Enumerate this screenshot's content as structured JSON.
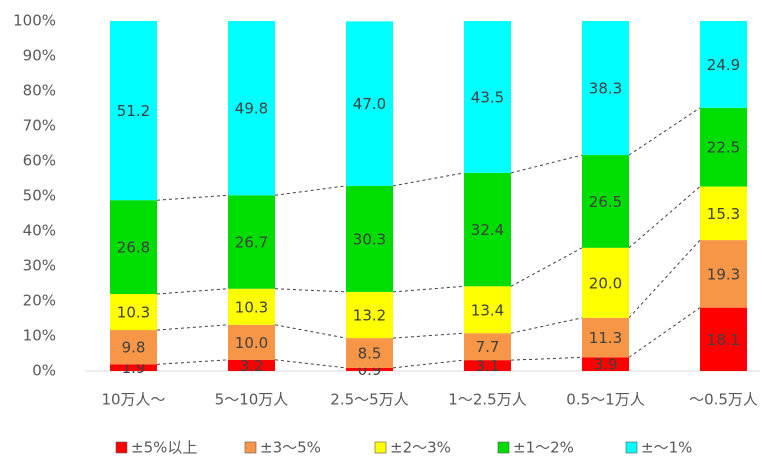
{
  "chart_data": {
    "type": "bar",
    "stacked": true,
    "percent": true,
    "categories": [
      "10万人～",
      "5～10万人",
      "2.5～5万人",
      "1～2.5万人",
      "0.5～1万人",
      "～0.5万人"
    ],
    "series": [
      {
        "name": "±5%以上",
        "color": "#ff0000",
        "values": [
          1.9,
          3.2,
          0.9,
          3.1,
          3.9,
          18.1
        ]
      },
      {
        "name": "±3～5%",
        "color": "#f79646",
        "values": [
          9.8,
          10.0,
          8.5,
          7.7,
          11.3,
          19.3
        ]
      },
      {
        "name": "±2～3%",
        "color": "#ffff00",
        "values": [
          10.3,
          10.3,
          13.2,
          13.4,
          20.0,
          15.3
        ]
      },
      {
        "name": "±1～2%",
        "color": "#00dd00",
        "values": [
          26.8,
          26.7,
          30.3,
          32.4,
          26.5,
          22.5
        ]
      },
      {
        "name": "±～1%",
        "color": "#00ffff",
        "values": [
          51.2,
          49.8,
          47.0,
          43.5,
          38.3,
          24.9
        ]
      }
    ],
    "ylim": [
      0,
      100
    ],
    "yticks": [
      "0%",
      "10%",
      "20%",
      "30%",
      "40%",
      "50%",
      "60%",
      "70%",
      "80%",
      "90%",
      "100%"
    ],
    "grid": false,
    "series_lines": "dashed",
    "legend_position": "bottom"
  }
}
